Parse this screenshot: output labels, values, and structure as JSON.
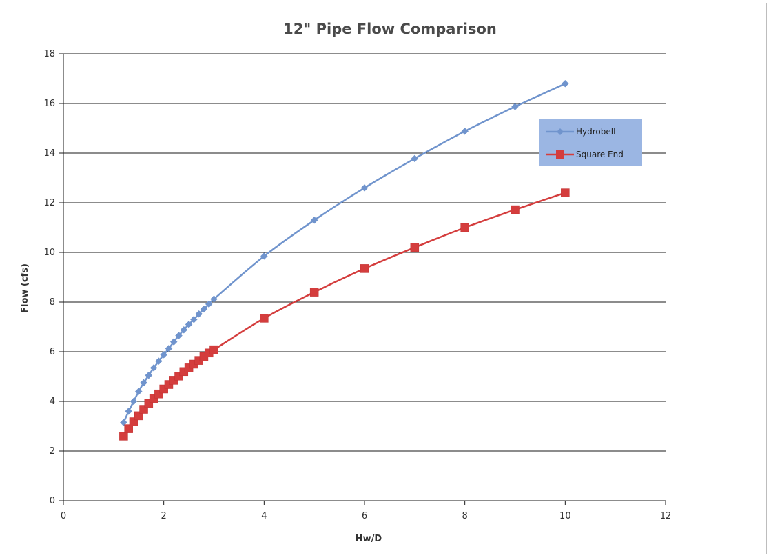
{
  "chart_data": {
    "type": "line",
    "title": "12\" Pipe Flow Comparison",
    "xlabel": "Hw/D",
    "ylabel": "Flow (cfs)",
    "xlim": [
      0,
      12
    ],
    "ylim": [
      0,
      18
    ],
    "x_ticks": [
      "0",
      "2",
      "4",
      "6",
      "8",
      "10",
      "12"
    ],
    "y_ticks": [
      "0",
      "2",
      "4",
      "6",
      "8",
      "10",
      "12",
      "14",
      "16",
      "18"
    ],
    "grid": "horizontal",
    "legend_position": "right",
    "series": [
      {
        "name": "Hydrobell",
        "color": "#7094cd",
        "marker": "diamond",
        "smooth": true,
        "x": [
          1.2,
          1.3,
          1.4,
          1.5,
          1.6,
          1.7,
          1.8,
          1.9,
          2.0,
          2.1,
          2.2,
          2.3,
          2.4,
          2.5,
          2.6,
          2.7,
          2.8,
          2.9,
          3.0,
          4,
          5,
          6,
          7,
          8,
          9,
          10
        ],
        "y": [
          3.15,
          3.6,
          4.0,
          4.4,
          4.75,
          5.05,
          5.35,
          5.62,
          5.88,
          6.13,
          6.4,
          6.65,
          6.88,
          7.1,
          7.3,
          7.52,
          7.72,
          7.92,
          8.12,
          9.85,
          11.3,
          12.6,
          13.78,
          14.88,
          15.87,
          16.8
        ]
      },
      {
        "name": "Square End",
        "color": "#d43d3d",
        "marker": "square",
        "smooth": true,
        "x": [
          1.2,
          1.3,
          1.4,
          1.5,
          1.6,
          1.7,
          1.8,
          1.9,
          2.0,
          2.1,
          2.2,
          2.3,
          2.4,
          2.5,
          2.6,
          2.7,
          2.8,
          2.9,
          3.0,
          4,
          5,
          6,
          7,
          8,
          9,
          10
        ],
        "y": [
          2.6,
          2.9,
          3.18,
          3.42,
          3.68,
          3.92,
          4.12,
          4.3,
          4.5,
          4.68,
          4.85,
          5.02,
          5.2,
          5.35,
          5.5,
          5.65,
          5.8,
          5.95,
          6.08,
          7.35,
          8.4,
          9.35,
          10.2,
          11.0,
          11.72,
          12.4
        ]
      }
    ]
  },
  "legend": {
    "background": "#9bb6e3"
  }
}
